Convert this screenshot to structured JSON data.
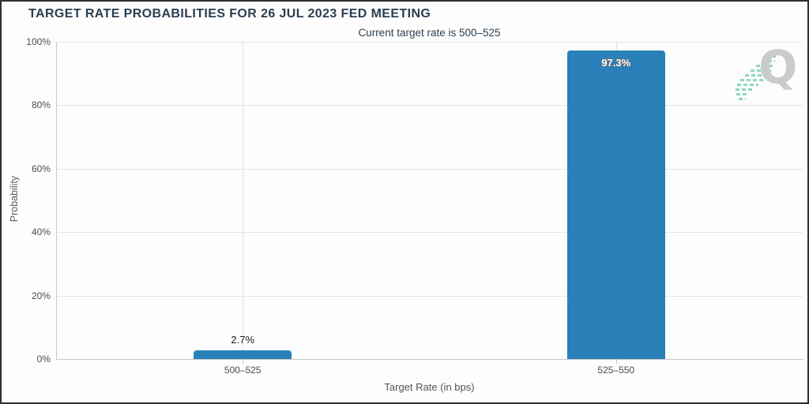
{
  "chart_data": {
    "type": "bar",
    "title": "TARGET RATE PROBABILITIES FOR 26 JUL 2023 FED MEETING",
    "subtitle": "Current target rate is 500–525",
    "categories": [
      "500–525",
      "525–550"
    ],
    "values": [
      2.7,
      97.3
    ],
    "value_labels": [
      "2.7%",
      "97.3%"
    ],
    "value_label_position": [
      "above",
      "inside"
    ],
    "xlabel": "Target Rate (in bps)",
    "ylabel": "Probability",
    "ylim": [
      0,
      100
    ],
    "yticks": [
      0,
      20,
      40,
      60,
      80,
      100
    ],
    "ytick_labels": [
      "0%",
      "20%",
      "40%",
      "60%",
      "80%",
      "100%"
    ],
    "grid": true,
    "legend": "none",
    "bar_color": "#2a80b9"
  },
  "watermark": {
    "letter": "Q",
    "letter_color": "#c9cbcc",
    "swoosh_color": "#8dd7c3"
  },
  "colors": {
    "title_text": "#2b3e51",
    "axis_text": "#4d4d4d",
    "gridline": "#e4e4e4",
    "axis_line": "#c8c8c8",
    "frame_border": "#2f2f2f"
  }
}
